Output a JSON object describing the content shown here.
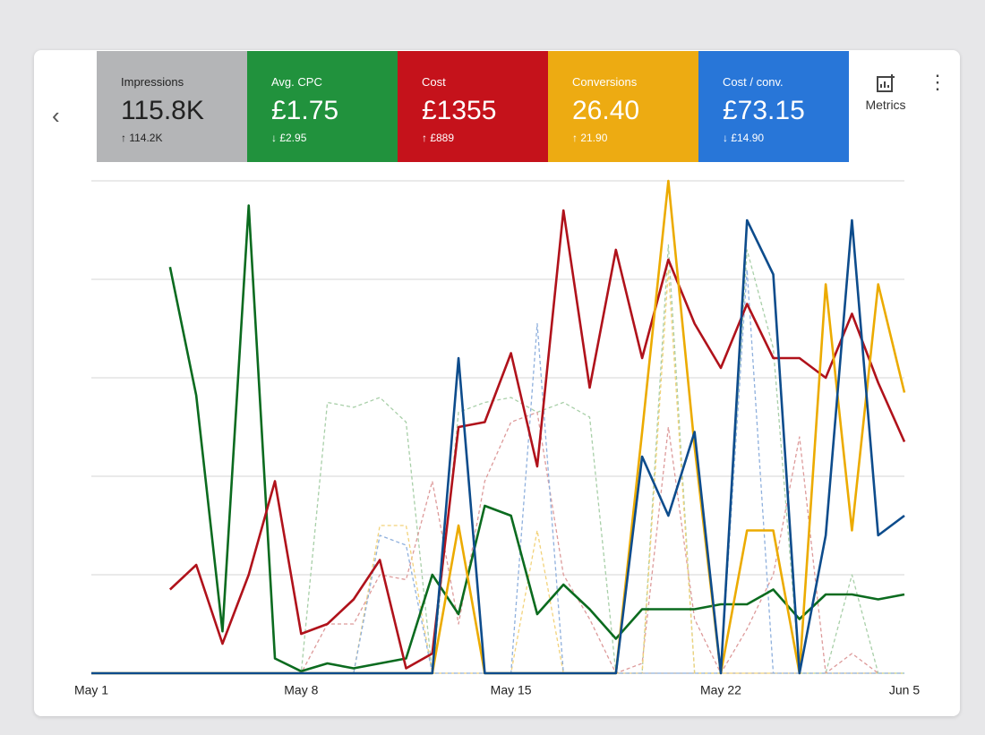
{
  "cards": [
    {
      "label": "Impressions",
      "value": "115.8K",
      "change": "↑ 114.2K",
      "color": "#b4b5b7"
    },
    {
      "label": "Avg. CPC",
      "value": "£1.75",
      "change": "↓ £2.95",
      "color": "#21923d"
    },
    {
      "label": "Cost",
      "value": "£1355",
      "change": "↑ £889",
      "color": "#c5121b"
    },
    {
      "label": "Conversions",
      "value": "26.40",
      "change": "↑ 21.90",
      "color": "#edab12"
    },
    {
      "label": "Cost / conv.",
      "value": "£73.15",
      "change": "↓ £14.90",
      "color": "#2876d8"
    }
  ],
  "metrics_button": "Metrics",
  "chart_data": {
    "type": "line",
    "categories": [
      "May 1",
      null,
      null,
      null,
      null,
      null,
      null,
      null,
      "May 8",
      null,
      null,
      null,
      null,
      null,
      null,
      null,
      "May 15",
      null,
      null,
      null,
      null,
      null,
      null,
      null,
      "May 22",
      null,
      null,
      null,
      null,
      null,
      null,
      "Jun 5"
    ],
    "ylim": [
      0,
      100
    ],
    "yticks": [
      0,
      20,
      40,
      60,
      80,
      100
    ],
    "grid": true,
    "series": [
      {
        "color": "#a8cfa8",
        "dashed": true,
        "values": [
          0,
          0,
          0,
          0,
          0,
          0,
          0,
          0,
          0,
          55,
          54,
          56,
          51,
          0,
          53,
          55,
          56,
          53,
          55,
          52,
          0,
          0,
          87,
          0,
          0,
          86,
          66,
          0,
          0,
          20,
          0,
          0
        ]
      },
      {
        "color": "#dd9a9a",
        "dashed": true,
        "values": [
          0,
          0,
          0,
          0,
          0,
          0,
          0,
          0,
          0,
          10,
          10,
          20,
          19,
          39,
          10,
          39,
          51,
          53,
          20,
          11,
          0,
          2,
          50,
          11,
          0,
          9,
          20,
          48,
          0,
          4,
          0,
          null
        ]
      },
      {
        "color": "#f2d27a",
        "dashed": true,
        "values": [
          0,
          0,
          0,
          0,
          0,
          0,
          0,
          0,
          0,
          0,
          0,
          30,
          30,
          0,
          0,
          0,
          0,
          29,
          0,
          0,
          0,
          0,
          82,
          0,
          0,
          0,
          0,
          0,
          0,
          0,
          0,
          0
        ]
      },
      {
        "color": "#8fb0dd",
        "dashed": true,
        "values": [
          0,
          0,
          0,
          0,
          0,
          0,
          0,
          0,
          0,
          0,
          0,
          28,
          26,
          0,
          0,
          0,
          0,
          71,
          0,
          0,
          0,
          0,
          0,
          0,
          0,
          82,
          0,
          0,
          0,
          0,
          0,
          0
        ]
      },
      {
        "color": "#0b6b1f",
        "dashed": false,
        "values": [
          null,
          null,
          null,
          82.5,
          56.4,
          8.5,
          95,
          3,
          0.4,
          2,
          1,
          2,
          3,
          20,
          12,
          34,
          32,
          12,
          18,
          13,
          7,
          13,
          13,
          13,
          14,
          14,
          17,
          11,
          16,
          16,
          15,
          16
        ]
      },
      {
        "color": "#b0121b",
        "dashed": false,
        "values": [
          null,
          null,
          null,
          17,
          22,
          6,
          20,
          39,
          8,
          10,
          15,
          23,
          1,
          4,
          50,
          51,
          65,
          42,
          94,
          58,
          86,
          64,
          84,
          71,
          62,
          75,
          64,
          64,
          60,
          73,
          59,
          47
        ]
      },
      {
        "color": "#ecab00",
        "dashed": false,
        "values": [
          0,
          0,
          0,
          0,
          0,
          0,
          0,
          0,
          0,
          0,
          0,
          0,
          0,
          0,
          30,
          0,
          0,
          0,
          0,
          0,
          0,
          49,
          100,
          46,
          0,
          29,
          29,
          0,
          79,
          29,
          79,
          57
        ]
      },
      {
        "color": "#0d4c8c",
        "dashed": false,
        "values": [
          0,
          0,
          0,
          0,
          0,
          0,
          0,
          0,
          0,
          0,
          0,
          0,
          0,
          0,
          64,
          0,
          0,
          0,
          0,
          0,
          0,
          44,
          32,
          49,
          0,
          92,
          81,
          0,
          28,
          92,
          28,
          32
        ]
      }
    ]
  }
}
